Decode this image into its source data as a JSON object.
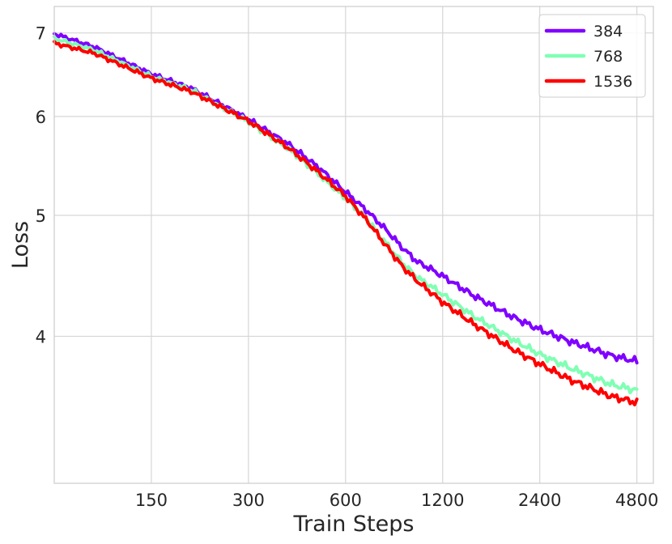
{
  "chart_data": {
    "type": "line",
    "title": "",
    "xlabel": "Train Steps",
    "ylabel": "Loss",
    "x_scale": "log",
    "y_scale": "log",
    "xlim": [
      75,
      5400
    ],
    "ylim": [
      3.05,
      7.35
    ],
    "x_ticks": [
      150,
      300,
      600,
      1200,
      2400,
      4800
    ],
    "x_tick_labels": [
      "150",
      "300",
      "600",
      "1200",
      "2400",
      "4800"
    ],
    "y_ticks": [
      4,
      5,
      6,
      7
    ],
    "y_tick_labels": [
      "4",
      "5",
      "6",
      "7"
    ],
    "grid": true,
    "legend_position": "top-right",
    "x": [
      75,
      100,
      150,
      200,
      300,
      400,
      500,
      600,
      700,
      800,
      900,
      1000,
      1100,
      1200,
      1500,
      2000,
      2400,
      3000,
      4000,
      4800
    ],
    "series": [
      {
        "name": "384",
        "color": "#8000ff",
        "values": [
          6.99,
          6.82,
          6.49,
          6.32,
          5.97,
          5.7,
          5.45,
          5.22,
          5.04,
          4.87,
          4.71,
          4.59,
          4.53,
          4.47,
          4.31,
          4.14,
          4.05,
          3.96,
          3.86,
          3.82
        ]
      },
      {
        "name": "768",
        "color": "#80ffb4",
        "values": [
          6.93,
          6.78,
          6.46,
          6.3,
          5.94,
          5.65,
          5.38,
          5.16,
          4.96,
          4.75,
          4.58,
          4.46,
          4.39,
          4.32,
          4.15,
          3.97,
          3.87,
          3.77,
          3.66,
          3.62
        ]
      },
      {
        "name": "1536",
        "color": "#ff0000",
        "values": [
          6.87,
          6.74,
          6.44,
          6.28,
          5.95,
          5.66,
          5.4,
          5.18,
          4.95,
          4.73,
          4.55,
          4.43,
          4.34,
          4.26,
          4.09,
          3.9,
          3.8,
          3.69,
          3.58,
          3.54
        ]
      }
    ]
  }
}
